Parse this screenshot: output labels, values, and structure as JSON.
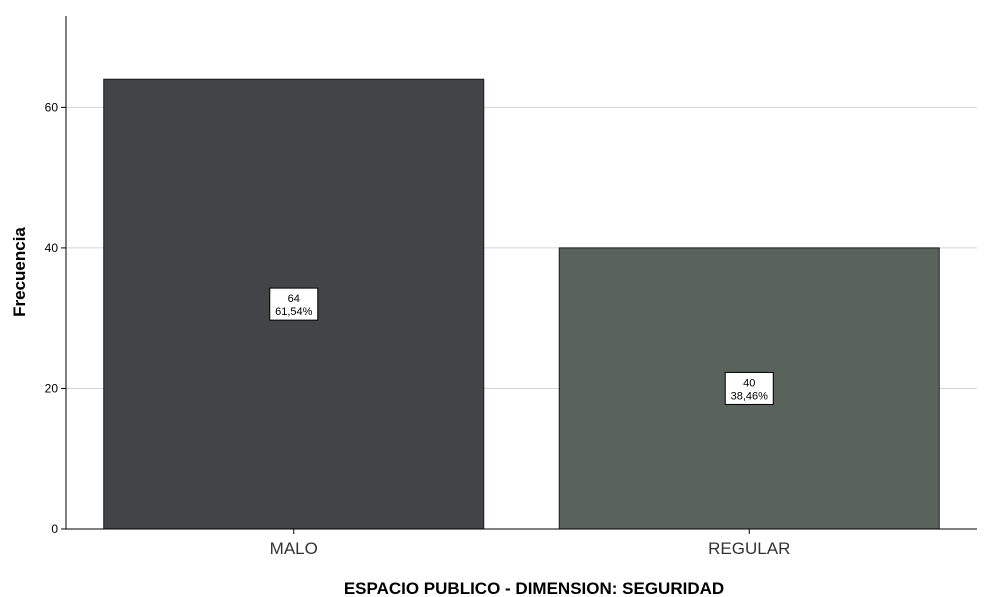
{
  "chart_data": {
    "type": "bar",
    "title": "",
    "xlabel": "ESPACIO PUBLICO - DIMENSION: SEGURIDAD",
    "ylabel": "Frecuencia",
    "categories": [
      "MALO",
      "REGULAR"
    ],
    "values": [
      64,
      40
    ],
    "percent_labels": [
      "61,54%",
      "38,46%"
    ],
    "bar_colors": [
      "#434447",
      "#5a625c"
    ],
    "ylim": [
      0,
      73
    ],
    "yticks": [
      0,
      20,
      40,
      60
    ],
    "grid": true,
    "legend": "none"
  }
}
